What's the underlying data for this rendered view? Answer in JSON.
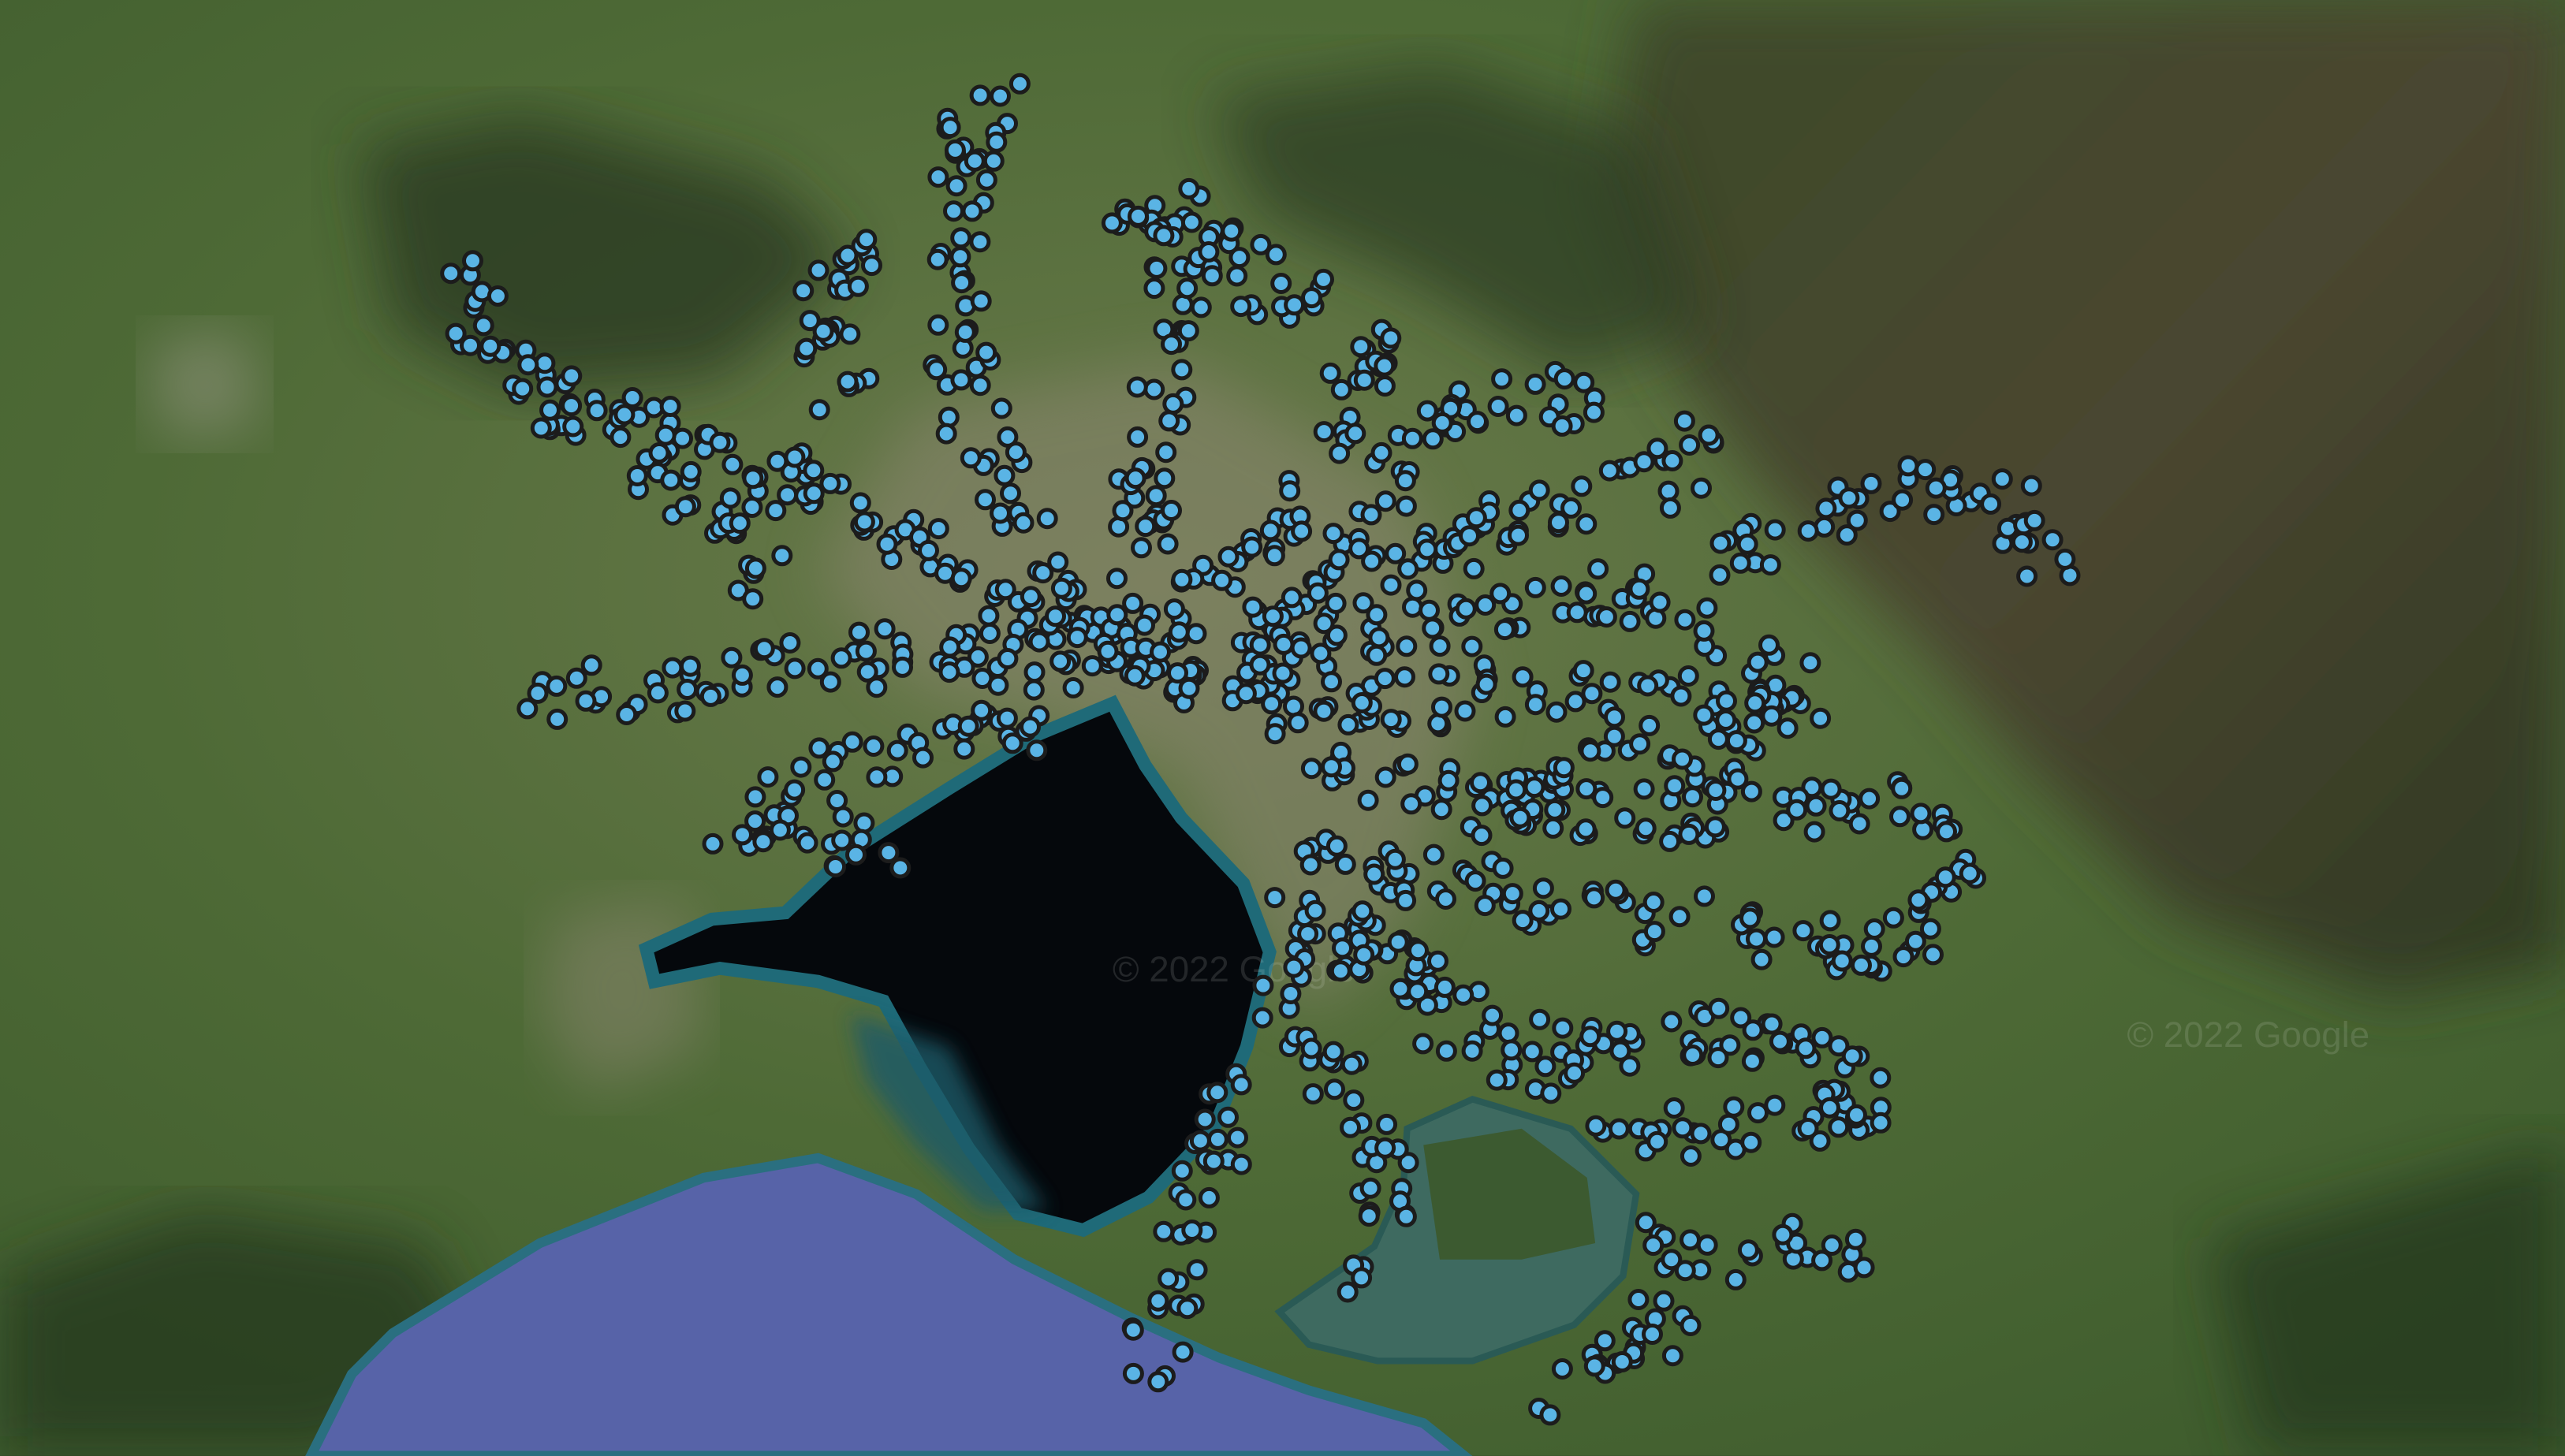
{
  "map": {
    "type": "satellite",
    "watermark": "© 2022 Google",
    "colors": {
      "land": "#4a6535",
      "land_dark": "#2c3f22",
      "forest_mountain": "#3a3a26",
      "urban": "#8a8670",
      "bay": "#05080c",
      "bay_edge": "#1f6a78",
      "ocean": "#5763a8",
      "western_port": "#3e6a60",
      "marker_fill": "#5ab4e5",
      "marker_stroke": "#1c1c1c"
    },
    "markers": {
      "icon": "circle-marker-icon"
    }
  }
}
